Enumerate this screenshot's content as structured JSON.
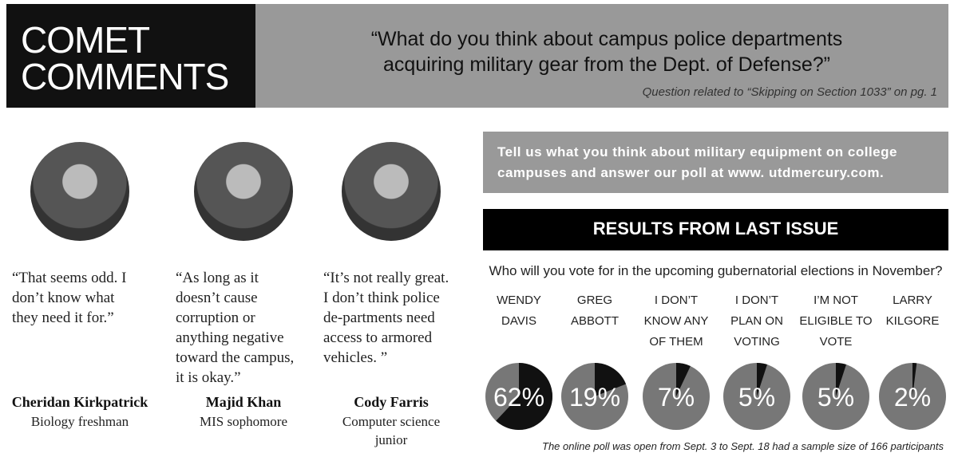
{
  "header": {
    "title_line1": "COMET",
    "title_line2": "COMMENTS",
    "question": "“What do you think about campus police departments acquiring military gear from the Dept. of Defense?”",
    "note": "Question related to “Skipping  on Section 1033” on pg. 1"
  },
  "people": [
    {
      "quote": "“That seems odd. I don’t know what they need it for.”",
      "name": "Cheridan Kirkpatrick",
      "role": "Biology freshman"
    },
    {
      "quote": "“As long as it doesn’t cause corruption or anything negative toward the campus, it is okay.”",
      "name": "Majid Khan",
      "role": "MIS sophomore"
    },
    {
      "quote": "“It’s not really great. I don’t think police de-partments need access to armored vehicles. ”",
      "name": "Cody Farris",
      "role": "Computer science junior"
    }
  ],
  "callout": "Tell us what you think about military equipment on college campuses and answer our poll at www. utdmercury.com.",
  "chart_data": {
    "type": "pie",
    "title": "RESULTS FROM LAST ISSUE",
    "subtitle": "Who will you vote for in the upcoming gubernatorial elections in November?",
    "categories": [
      "WENDY DAVIS",
      "GREG ABBOTT",
      "I DON’T KNOW ANY OF THEM",
      "I DON’T PLAN ON VOTING",
      "I’M NOT ELIGIBLE TO VOTE",
      "LARRY KILGORE"
    ],
    "values": [
      62,
      19,
      7,
      5,
      5,
      2
    ],
    "value_labels": [
      "62%",
      "19%",
      "7%",
      "5%",
      "5%",
      "2%"
    ],
    "color": "#111111",
    "note": "The online poll was open from Sept. 3 to Sept. 18 had a sample size of 166 participants"
  }
}
